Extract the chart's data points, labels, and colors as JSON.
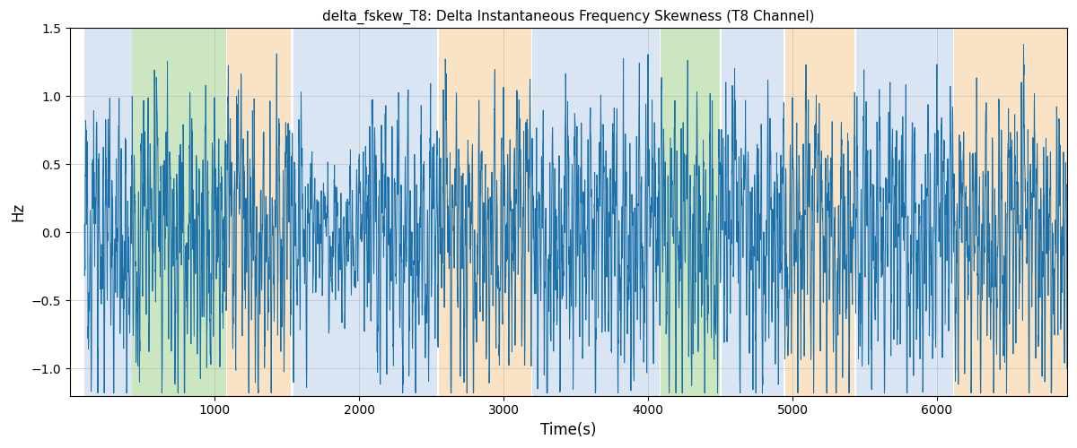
{
  "title": "delta_fskew_T8: Delta Instantaneous Frequency Skewness (T8 Channel)",
  "xlabel": "Time(s)",
  "ylabel": "Hz",
  "ylim": [
    -1.2,
    1.5
  ],
  "xlim": [
    0,
    6900
  ],
  "yticks": [
    -1.0,
    -0.5,
    0.0,
    0.5,
    1.0,
    1.5
  ],
  "xticks": [
    1000,
    2000,
    3000,
    4000,
    5000,
    6000
  ],
  "grid_color": "#b0b0b0",
  "line_color": "#1a6fa8",
  "figsize": [
    12.0,
    5.0
  ],
  "dpi": 100,
  "bands": [
    {
      "xmin": 100,
      "xmax": 430,
      "color": "#aec6e8",
      "alpha": 0.45
    },
    {
      "xmin": 430,
      "xmax": 1080,
      "color": "#90c978",
      "alpha": 0.45
    },
    {
      "xmin": 1090,
      "xmax": 1530,
      "color": "#f5c98a",
      "alpha": 0.5
    },
    {
      "xmin": 1545,
      "xmax": 2540,
      "color": "#aec6e8",
      "alpha": 0.45
    },
    {
      "xmin": 2555,
      "xmax": 3190,
      "color": "#f5c98a",
      "alpha": 0.5
    },
    {
      "xmin": 3200,
      "xmax": 4080,
      "color": "#aec6e8",
      "alpha": 0.45
    },
    {
      "xmin": 4090,
      "xmax": 4500,
      "color": "#90c978",
      "alpha": 0.45
    },
    {
      "xmin": 4510,
      "xmax": 4940,
      "color": "#aec6e8",
      "alpha": 0.45
    },
    {
      "xmin": 4950,
      "xmax": 5430,
      "color": "#f5c98a",
      "alpha": 0.5
    },
    {
      "xmin": 5440,
      "xmax": 6110,
      "color": "#aec6e8",
      "alpha": 0.45
    },
    {
      "xmin": 6120,
      "xmax": 6900,
      "color": "#f5c98a",
      "alpha": 0.5
    }
  ]
}
